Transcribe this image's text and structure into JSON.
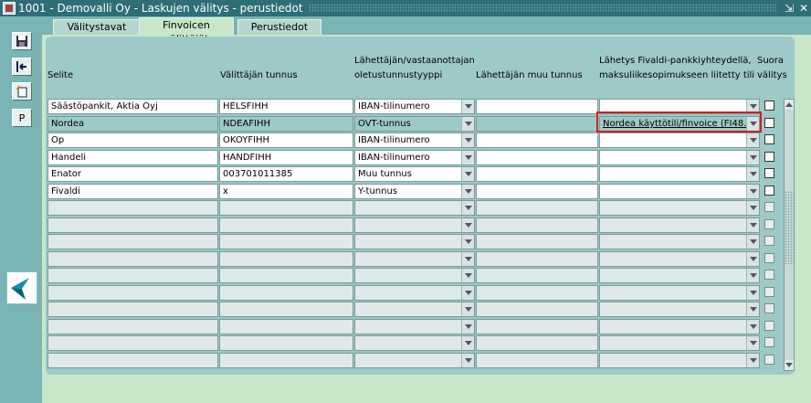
{
  "window": {
    "title": "1001 - Demovalli Oy - Laskujen välitys - perustiedot"
  },
  "titlebar_buttons": [
    "restore-icon",
    "close-icon"
  ],
  "toolbar": {
    "buttons": [
      {
        "name": "save-icon",
        "glyph": "💾"
      },
      {
        "name": "exit-icon",
        "glyph": "⇤"
      },
      {
        "name": "new-record-icon",
        "glyph": "📄"
      },
      {
        "name": "p-button",
        "glyph": "P"
      }
    ]
  },
  "tabs": [
    {
      "label": "Välitystavat",
      "active": false
    },
    {
      "label": "Finvoicen välittäjät",
      "active": true
    },
    {
      "label": "Perustiedot",
      "active": false
    }
  ],
  "columns": {
    "selite": "Selite",
    "tunnus": "Välittäjän tunnus",
    "tyyppi_line1": "Lähettäjän/vastaanottajan",
    "tyyppi_line2": "oletustunnustyyppi",
    "muu": "Lähettäjän muu tunnus",
    "tili_line1": "Lähetys Fivaldi-pankkiyhteydellä,",
    "tili_line2": "maksuliikesopimukseen liitetty tili",
    "suora_line1": "Suora",
    "suora_line2": "välitys"
  },
  "rows": [
    {
      "selite": "Säästöpankit, Aktia Oyj",
      "tunnus": "HELSFIHH",
      "tyyppi": "IBAN-tilinumero",
      "muu": "",
      "tili": "",
      "suora": false
    },
    {
      "selite": "Nordea",
      "tunnus": "NDEAFIHH",
      "tyyppi": "OVT-tunnus",
      "muu": "",
      "tili": "Nordea käyttötili/finvoice (FI48...",
      "suora": false,
      "selected": true
    },
    {
      "selite": "Op",
      "tunnus": "OKOYFIHH",
      "tyyppi": "IBAN-tilinumero",
      "muu": "",
      "tili": "",
      "suora": false
    },
    {
      "selite": "Handeli",
      "tunnus": "HANDFIHH",
      "tyyppi": "IBAN-tilinumero",
      "muu": "",
      "tili": "",
      "suora": false
    },
    {
      "selite": "Enator",
      "tunnus": "003701011385",
      "tyyppi": "Muu tunnus",
      "muu": "",
      "tili": "",
      "suora": false
    },
    {
      "selite": "Fivaldi",
      "tunnus": "x",
      "tyyppi": "Y-tunnus",
      "muu": "",
      "tili": "",
      "suora": false
    }
  ],
  "empty_rows": 10,
  "colors": {
    "titlebar": "#2e6e74",
    "panel": "#9ec9c9",
    "content": "#c8e6c8",
    "highlight": "#d02020"
  }
}
